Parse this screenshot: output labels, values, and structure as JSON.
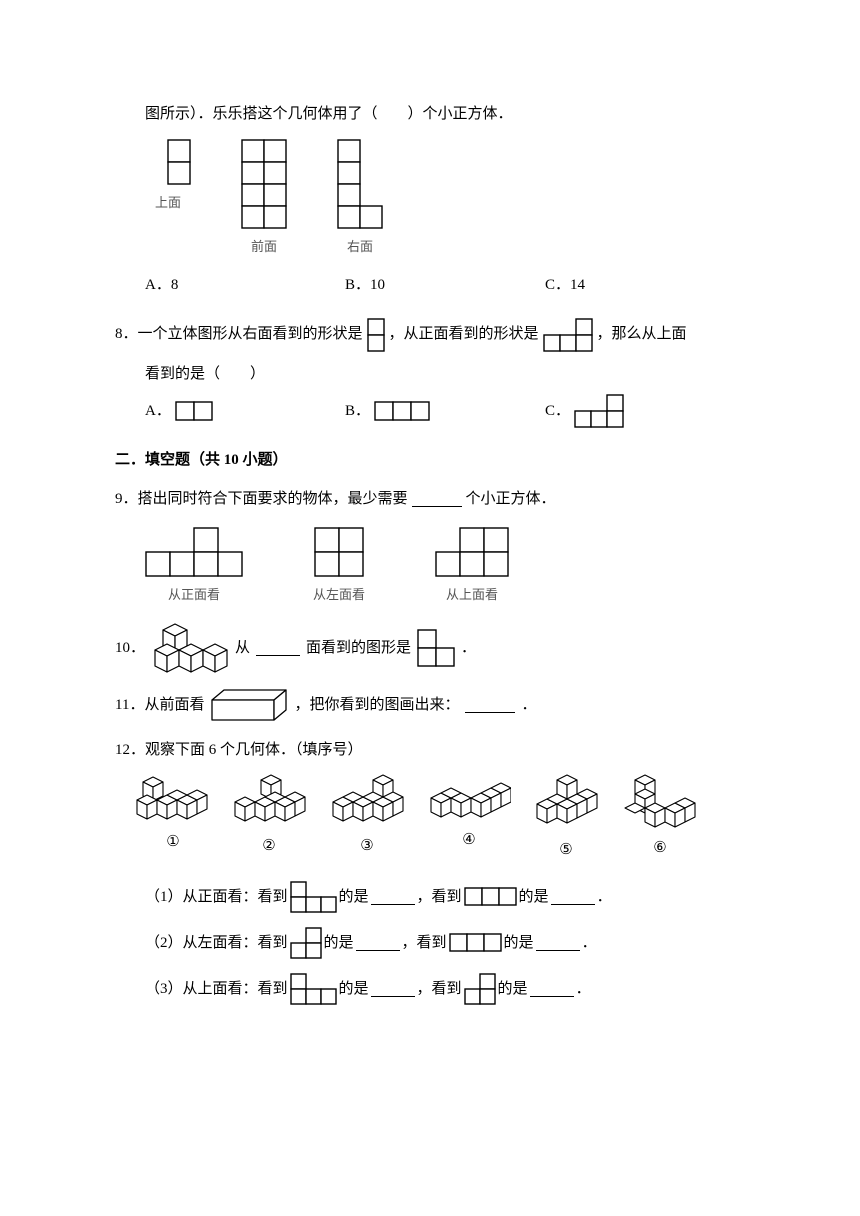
{
  "colors": {
    "stroke": "#000000",
    "bg": "#ffffff",
    "caption": "#555555"
  },
  "cell": 22,
  "q7_continued": {
    "text_line": "图所示）．乐乐搭这个几何体用了（　　）个小正方体．",
    "views": [
      {
        "caption": "上面",
        "cols": 2,
        "rows": 2,
        "cells": [
          [
            1,
            0
          ],
          [
            1,
            1
          ]
        ]
      },
      {
        "caption": "前面",
        "cols": 2,
        "rows": 4,
        "cells": [
          [
            0,
            0
          ],
          [
            1,
            0
          ],
          [
            0,
            1
          ],
          [
            1,
            1
          ],
          [
            0,
            2
          ],
          [
            1,
            2
          ],
          [
            0,
            3
          ],
          [
            1,
            3
          ]
        ]
      },
      {
        "caption": "右面",
        "cols": 2,
        "rows": 4,
        "cells": [
          [
            0,
            0
          ],
          [
            0,
            1
          ],
          [
            0,
            2
          ],
          [
            0,
            3
          ],
          [
            1,
            3
          ]
        ]
      }
    ],
    "options": {
      "A": "8",
      "B": "10",
      "C": "14"
    }
  },
  "q8": {
    "prefix": "8．一个立体图形从右面看到的形状是",
    "mid1": "，从正面看到的形状是",
    "mid2": "，那么从上面",
    "line2": "看到的是（　　）",
    "shape_right": {
      "cols": 1,
      "rows": 2,
      "cells": [
        [
          0,
          0
        ],
        [
          0,
          1
        ]
      ]
    },
    "shape_front": {
      "cols": 3,
      "rows": 2,
      "cells": [
        [
          2,
          0
        ],
        [
          0,
          1
        ],
        [
          1,
          1
        ],
        [
          2,
          1
        ]
      ]
    },
    "options": {
      "A": {
        "cols": 2,
        "rows": 1,
        "cells": [
          [
            0,
            0
          ],
          [
            1,
            0
          ]
        ]
      },
      "B": {
        "cols": 3,
        "rows": 1,
        "cells": [
          [
            0,
            0
          ],
          [
            1,
            0
          ],
          [
            2,
            0
          ]
        ]
      },
      "C": {
        "cols": 3,
        "rows": 2,
        "cells": [
          [
            2,
            0
          ],
          [
            0,
            1
          ],
          [
            1,
            1
          ],
          [
            2,
            1
          ]
        ]
      }
    }
  },
  "section2_title": "二．填空题（共 10 小题）",
  "q9": {
    "text": "9．搭出同时符合下面要求的物体，最少需要",
    "text_after": "个小正方体．",
    "views": [
      {
        "caption": "从正面看",
        "cols": 4,
        "rows": 2,
        "cells": [
          [
            2,
            0
          ],
          [
            0,
            1
          ],
          [
            1,
            1
          ],
          [
            2,
            1
          ],
          [
            3,
            1
          ]
        ]
      },
      {
        "caption": "从左面看",
        "cols": 2,
        "rows": 2,
        "cells": [
          [
            0,
            0
          ],
          [
            1,
            0
          ],
          [
            0,
            1
          ],
          [
            1,
            1
          ]
        ]
      },
      {
        "caption": "从上面看",
        "cols": 3,
        "rows": 2,
        "cells": [
          [
            1,
            0
          ],
          [
            2,
            0
          ],
          [
            0,
            1
          ],
          [
            1,
            1
          ],
          [
            2,
            1
          ]
        ]
      }
    ]
  },
  "q10": {
    "prefix": "10．",
    "mid": "从",
    "after": "面看到的图形是",
    "period": "．"
  },
  "q11": {
    "prefix": "11．从前面看",
    "after": "，把你看到的图画出来：",
    "period": "．"
  },
  "q12": {
    "text": "12．观察下面 6 个几何体．（填序号）",
    "fig_labels": [
      "①",
      "②",
      "③",
      "④",
      "⑤",
      "⑥"
    ],
    "subs": [
      {
        "label": "（1）从正面看：看到",
        "shape1": {
          "cols": 3,
          "rows": 2,
          "cells": [
            [
              0,
              0
            ],
            [
              0,
              1
            ],
            [
              1,
              1
            ],
            [
              2,
              1
            ]
          ]
        },
        "mid": "的是",
        "mid2": "，看到",
        "shape2": {
          "cols": 3,
          "rows": 1,
          "cells": [
            [
              0,
              0
            ],
            [
              1,
              0
            ],
            [
              2,
              0
            ]
          ]
        },
        "end": "的是",
        "period": "．"
      },
      {
        "label": "（2）从左面看：看到",
        "shape1": {
          "cols": 2,
          "rows": 2,
          "cells": [
            [
              1,
              0
            ],
            [
              0,
              1
            ],
            [
              1,
              1
            ]
          ]
        },
        "mid": "的是",
        "mid2": "，看到",
        "shape2": {
          "cols": 3,
          "rows": 1,
          "cells": [
            [
              0,
              0
            ],
            [
              1,
              0
            ],
            [
              2,
              0
            ]
          ]
        },
        "end": "的是",
        "period": "．"
      },
      {
        "label": "（3）从上面看：看到",
        "shape1": {
          "cols": 3,
          "rows": 2,
          "cells": [
            [
              0,
              0
            ],
            [
              0,
              1
            ],
            [
              1,
              1
            ],
            [
              2,
              1
            ]
          ]
        },
        "mid": "的是",
        "mid2": "，看到",
        "shape2": {
          "cols": 2,
          "rows": 2,
          "cells": [
            [
              1,
              0
            ],
            [
              0,
              1
            ],
            [
              1,
              1
            ]
          ]
        },
        "end": "的是",
        "period": "．"
      }
    ]
  }
}
